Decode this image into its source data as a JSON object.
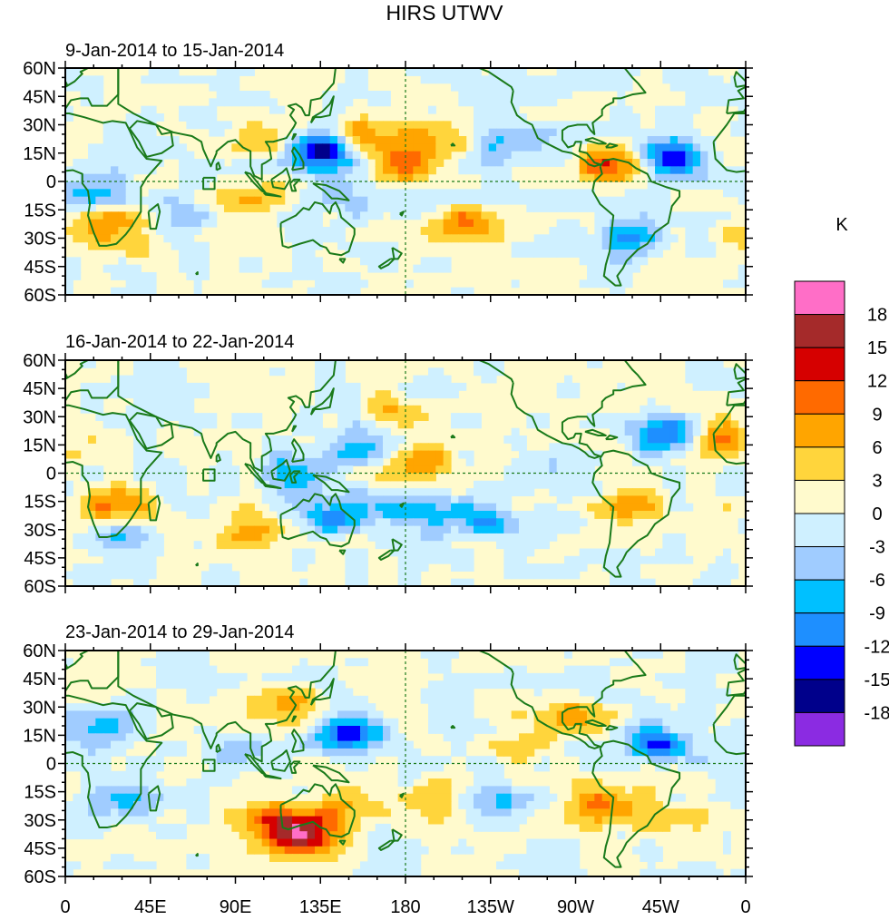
{
  "chart_data": {
    "type": "heatmap",
    "title": "HIRS UTWV",
    "panels": [
      {
        "subtitle": "9-Jan-2014 to 15-Jan-2014",
        "anomalies": [
          {
            "lon": 135,
            "lat": 14,
            "value": -13
          },
          {
            "lon": 130,
            "lat": 20,
            "value": -6
          },
          {
            "lon": 180,
            "lat": 10,
            "value": 12
          },
          {
            "lon": 160,
            "lat": 25,
            "value": 7
          },
          {
            "lon": 200,
            "lat": 25,
            "value": 6
          },
          {
            "lon": 210,
            "lat": -22,
            "value": 8
          },
          {
            "lon": 290,
            "lat": 8,
            "value": 12
          },
          {
            "lon": 320,
            "lat": 12,
            "value": -13
          },
          {
            "lon": 300,
            "lat": -30,
            "value": -9
          },
          {
            "lon": 24,
            "lat": -25,
            "value": 9
          },
          {
            "lon": 15,
            "lat": -5,
            "value": -6
          },
          {
            "lon": 60,
            "lat": -20,
            "value": -5
          },
          {
            "lon": 100,
            "lat": -12,
            "value": 5
          },
          {
            "lon": 155,
            "lat": -10,
            "value": -6
          },
          {
            "lon": 235,
            "lat": 20,
            "value": -7
          },
          {
            "lon": 105,
            "lat": 20,
            "value": 5
          }
        ]
      },
      {
        "subtitle": "16-Jan-2014 to 22-Jan-2014",
        "anomalies": [
          {
            "lon": 155,
            "lat": 15,
            "value": -9
          },
          {
            "lon": 120,
            "lat": 0,
            "value": -8
          },
          {
            "lon": 140,
            "lat": -22,
            "value": -10
          },
          {
            "lon": 180,
            "lat": -20,
            "value": -9
          },
          {
            "lon": 220,
            "lat": -25,
            "value": -10
          },
          {
            "lon": 320,
            "lat": 20,
            "value": -14
          },
          {
            "lon": 345,
            "lat": 18,
            "value": 9
          },
          {
            "lon": 25,
            "lat": -18,
            "value": 10
          },
          {
            "lon": 30,
            "lat": -32,
            "value": -7
          },
          {
            "lon": 100,
            "lat": -30,
            "value": 8
          },
          {
            "lon": 190,
            "lat": 5,
            "value": 8
          },
          {
            "lon": 175,
            "lat": 30,
            "value": 6
          },
          {
            "lon": 300,
            "lat": -18,
            "value": 6
          },
          {
            "lon": 260,
            "lat": 5,
            "value": -5
          }
        ]
      },
      {
        "subtitle": "23-Jan-2014 to 29-Jan-2014",
        "anomalies": [
          {
            "lon": 125,
            "lat": -38,
            "value": 16
          },
          {
            "lon": 110,
            "lat": -30,
            "value": 9
          },
          {
            "lon": 145,
            "lat": -25,
            "value": 7
          },
          {
            "lon": 150,
            "lat": 15,
            "value": -14
          },
          {
            "lon": 120,
            "lat": 30,
            "value": 6
          },
          {
            "lon": 315,
            "lat": 10,
            "value": -12
          },
          {
            "lon": 20,
            "lat": 20,
            "value": -8
          },
          {
            "lon": 30,
            "lat": -20,
            "value": -6
          },
          {
            "lon": 200,
            "lat": -18,
            "value": 7
          },
          {
            "lon": 225,
            "lat": -20,
            "value": -9
          },
          {
            "lon": 280,
            "lat": -22,
            "value": 8
          },
          {
            "lon": 310,
            "lat": -30,
            "value": 6
          },
          {
            "lon": 240,
            "lat": 10,
            "value": 5
          },
          {
            "lon": 270,
            "lat": 25,
            "value": 6
          },
          {
            "lon": 90,
            "lat": 5,
            "value": -5
          }
        ]
      }
    ],
    "lat_ticks": [
      "60N",
      "45N",
      "30N",
      "15N",
      "0",
      "15S",
      "30S",
      "45S",
      "60S"
    ],
    "lat_values": [
      60,
      45,
      30,
      15,
      0,
      -15,
      -30,
      -45,
      -60
    ],
    "lon_ticks": [
      "0",
      "45E",
      "90E",
      "135E",
      "180",
      "135W",
      "90W",
      "45W",
      "0"
    ],
    "lon_values": [
      0,
      45,
      90,
      135,
      180,
      225,
      270,
      315,
      360
    ],
    "xlim": [
      0,
      360
    ],
    "ylim": [
      -60,
      60
    ],
    "colorbar": {
      "unit": "K",
      "levels": [
        "18",
        "15",
        "12",
        "9",
        "6",
        "3",
        "0",
        "-3",
        "-6",
        "-9",
        "-12",
        "-15",
        "-18"
      ],
      "level_values": [
        18,
        15,
        12,
        9,
        6,
        3,
        0,
        -3,
        -6,
        -9,
        -12,
        -15,
        -18
      ],
      "colors": [
        "#ff6ec7",
        "#a52a2a",
        "#d60000",
        "#ff6a00",
        "#ffa500",
        "#ffd53c",
        "#fffacd",
        "#cff0ff",
        "#a0ccff",
        "#00c0ff",
        "#1e8fff",
        "#0000ff",
        "#00008b",
        "#8b2be2"
      ]
    },
    "coast_color": "#1a7a1a"
  }
}
